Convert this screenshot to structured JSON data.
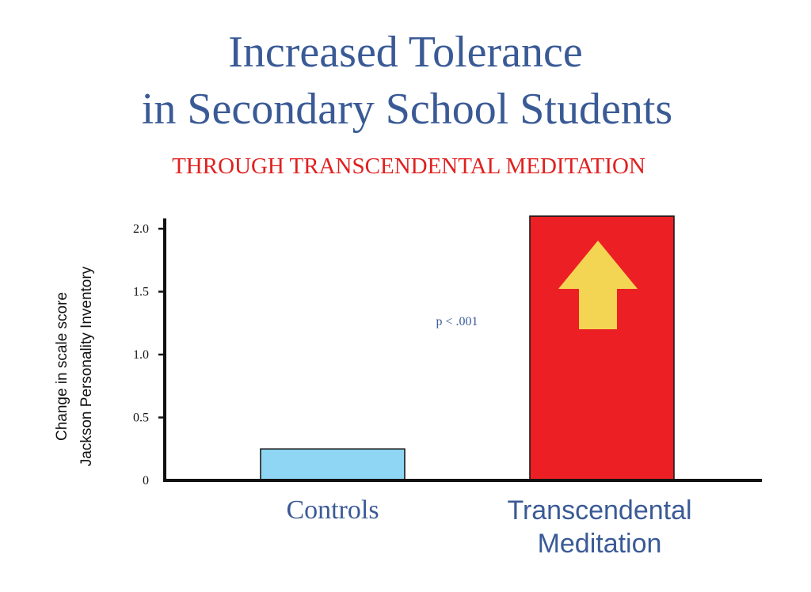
{
  "chart_data": {
    "type": "bar",
    "title": [
      "Increased Tolerance",
      "in Secondary School Students"
    ],
    "subtitle": "THROUGH TRANSCENDENTAL MEDITATION",
    "ylabel": [
      "Change in scale score",
      "Jackson Personality Inventory"
    ],
    "categories": [
      "Controls",
      "Transcendental Meditation"
    ],
    "category_lines": [
      [
        "Controls"
      ],
      [
        "Transcendental",
        "Meditation"
      ]
    ],
    "values": [
      0.25,
      2.1
    ],
    "ylim": [
      0,
      2.0
    ],
    "yticks": [
      0,
      0.5,
      1.0,
      1.5,
      2.0
    ],
    "ytick_labels": [
      "0",
      "0.5",
      "1.0",
      "1.5",
      "2.0"
    ],
    "annotation": "p < .001",
    "grid": false,
    "legend": "none",
    "colors": {
      "controls_bar": "#8fd6f5",
      "tm_bar": "#ec2024",
      "arrow": "#f4d553",
      "title": "#3a5a96",
      "subtitle": "#e0201f",
      "axis": "#111111"
    },
    "arrow_icon": "up-arrow-icon"
  }
}
